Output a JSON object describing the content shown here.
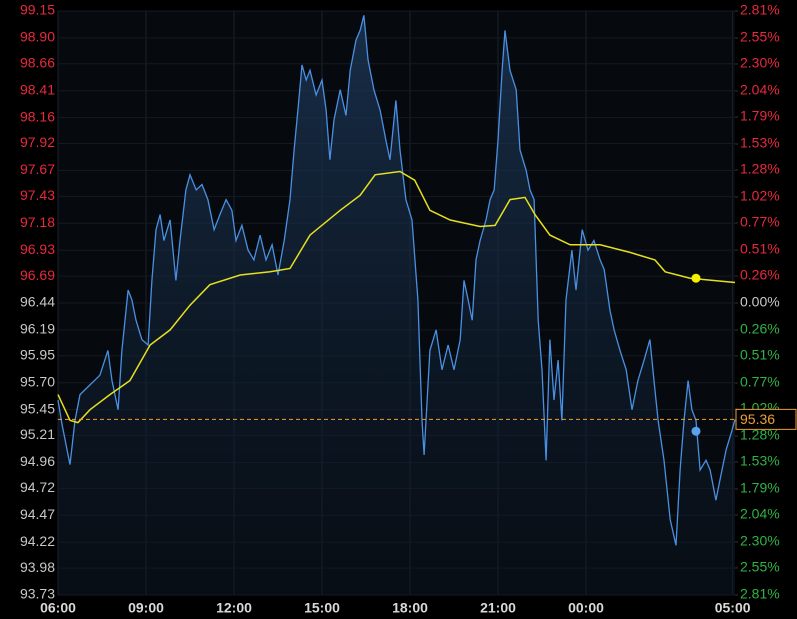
{
  "chart_data": {
    "type": "line",
    "xlim": [
      0,
      23.08
    ],
    "xticks": [
      {
        "value": 0,
        "label": "06:00"
      },
      {
        "value": 3,
        "label": "09:00"
      },
      {
        "value": 6,
        "label": "12:00"
      },
      {
        "value": 9,
        "label": "15:00"
      },
      {
        "value": 12,
        "label": "18:00"
      },
      {
        "value": 15,
        "label": "21:00"
      },
      {
        "value": 18,
        "label": "00:00"
      },
      {
        "value": 23,
        "label": "05:00"
      }
    ],
    "ylim": [
      93.73,
      99.15
    ],
    "yticks": [
      99.15,
      {
        "value": 98.9,
        "label": "98.90"
      },
      98.66,
      98.41,
      98.16,
      97.92,
      97.67,
      97.43,
      97.18,
      96.93,
      96.69,
      96.44,
      96.19,
      95.95,
      {
        "value": 95.7,
        "label": "95.70"
      },
      95.45,
      95.21,
      94.96,
      94.72,
      94.47,
      94.22,
      93.98,
      93.73
    ],
    "y2lim": [
      -2.81,
      2.81
    ],
    "y2ticks": [
      {
        "value": 2.81,
        "label": "2.81%"
      },
      {
        "value": 2.55,
        "label": "2.55%"
      },
      {
        "value": 2.3,
        "label": "2.30%"
      },
      {
        "value": 2.04,
        "label": "2.04%"
      },
      {
        "value": 1.79,
        "label": "1.79%"
      },
      {
        "value": 1.53,
        "label": "1.53%"
      },
      {
        "value": 1.28,
        "label": "1.28%"
      },
      {
        "value": 1.02,
        "label": "1.02%"
      },
      {
        "value": 0.77,
        "label": "0.77%"
      },
      {
        "value": 0.51,
        "label": "0.51%"
      },
      {
        "value": 0.26,
        "label": "0.26%"
      },
      {
        "value": 0,
        "label": "0.00%"
      },
      {
        "value": -0.26,
        "label": "0.26%"
      },
      {
        "value": -0.51,
        "label": "0.51%"
      },
      {
        "value": -0.77,
        "label": "0.77%"
      },
      {
        "value": -1.02,
        "label": "1.02%"
      },
      {
        "value": -1.28,
        "label": "1.28%"
      },
      {
        "value": -1.53,
        "label": "1.53%"
      },
      {
        "value": -1.79,
        "label": "1.79%"
      },
      {
        "value": -2.04,
        "label": "2.04%"
      },
      {
        "value": -2.3,
        "label": "2.30%"
      },
      {
        "value": -2.55,
        "label": "2.55%"
      },
      {
        "value": -2.81,
        "label": "2.81%"
      }
    ],
    "up_color": "#e8283c",
    "down_color": "#2fb344",
    "grid": true,
    "series": [
      {
        "color": "#4a90e2",
        "area": true,
        "x": [
          0,
          0.14,
          0.41,
          0.58,
          0.75,
          1.09,
          1.43,
          1.7,
          1.84,
          2.05,
          2.18,
          2.39,
          2.52,
          2.66,
          2.86,
          3.07,
          3.2,
          3.34,
          3.48,
          3.61,
          3.82,
          4.02,
          4.16,
          4.36,
          4.5,
          4.71,
          4.91,
          5.11,
          5.32,
          5.52,
          5.73,
          5.93,
          6.07,
          6.27,
          6.48,
          6.68,
          6.89,
          7.09,
          7.3,
          7.5,
          7.71,
          7.91,
          8.05,
          8.18,
          8.32,
          8.46,
          8.59,
          8.8,
          9.0,
          9.14,
          9.27,
          9.41,
          9.62,
          9.82,
          9.96,
          10.16,
          10.3,
          10.43,
          10.57,
          10.77,
          10.98,
          11.18,
          11.32,
          11.52,
          11.66,
          11.86,
          12.07,
          12.27,
          12.41,
          12.48,
          12.68,
          12.89,
          13.09,
          13.3,
          13.5,
          13.71,
          13.84,
          13.98,
          14.12,
          14.25,
          14.39,
          14.59,
          14.73,
          14.87,
          15.0,
          15.14,
          15.24,
          15.41,
          15.62,
          15.75,
          15.96,
          16.09,
          16.23,
          16.37,
          16.5,
          16.64,
          16.77,
          16.91,
          17.05,
          17.18,
          17.32,
          17.52,
          17.66,
          17.87,
          18.07,
          18.27,
          18.48,
          18.62,
          18.82,
          18.96,
          19.16,
          19.37,
          19.57,
          19.77,
          19.98,
          20.18,
          20.32,
          20.46,
          20.66,
          20.87,
          21.07,
          21.21,
          21.34,
          21.48,
          21.61,
          21.75,
          21.89,
          22.09,
          22.23,
          22.43,
          22.57,
          22.78,
          22.98,
          23.08
        ],
        "values": [
          95.54,
          95.31,
          94.94,
          95.35,
          95.59,
          95.68,
          95.77,
          96.0,
          95.72,
          95.45,
          96.0,
          96.56,
          96.47,
          96.28,
          96.1,
          96.05,
          96.65,
          97.12,
          97.26,
          97.02,
          97.21,
          96.65,
          97.02,
          97.49,
          97.63,
          97.49,
          97.54,
          97.4,
          97.12,
          97.26,
          97.4,
          97.3,
          97.02,
          97.16,
          96.93,
          96.84,
          97.07,
          96.84,
          96.98,
          96.7,
          97.02,
          97.4,
          97.86,
          98.23,
          98.65,
          98.51,
          98.6,
          98.37,
          98.51,
          98.23,
          97.77,
          98.14,
          98.42,
          98.18,
          98.6,
          98.88,
          98.97,
          99.11,
          98.7,
          98.42,
          98.23,
          97.95,
          97.77,
          98.32,
          97.86,
          97.4,
          97.21,
          96.47,
          95.35,
          95.03,
          96.0,
          96.19,
          95.82,
          96.05,
          95.82,
          96.1,
          96.65,
          96.47,
          96.28,
          96.84,
          97.02,
          97.21,
          97.4,
          97.49,
          97.95,
          98.6,
          98.97,
          98.6,
          98.42,
          97.86,
          97.67,
          97.49,
          97.4,
          96.28,
          95.82,
          94.98,
          96.1,
          95.54,
          95.91,
          95.35,
          96.47,
          96.93,
          96.56,
          97.12,
          96.93,
          97.02,
          96.84,
          96.75,
          96.37,
          96.19,
          96.0,
          95.82,
          95.45,
          95.72,
          95.91,
          96.1,
          95.72,
          95.35,
          94.98,
          94.43,
          94.19,
          94.89,
          95.35,
          95.72,
          95.45,
          95.35,
          94.89,
          94.98,
          94.89,
          94.61,
          94.8,
          95.08,
          95.26,
          95.36
        ]
      },
      {
        "color": "#e6e01e",
        "area": false,
        "x": [
          0,
          0.41,
          0.68,
          1.09,
          1.77,
          2.45,
          3.14,
          3.82,
          4.5,
          5.18,
          6.21,
          7.23,
          7.91,
          8.59,
          9.62,
          10.3,
          10.81,
          11.66,
          12.16,
          12.68,
          13.37,
          14.39,
          14.9,
          15.41,
          15.92,
          16.26,
          16.77,
          17.46,
          18.48,
          19.5,
          20.35,
          20.7,
          21.55,
          23.08
        ],
        "values": [
          95.59,
          95.35,
          95.33,
          95.45,
          95.59,
          95.72,
          96.05,
          96.19,
          96.42,
          96.61,
          96.7,
          96.73,
          96.76,
          97.07,
          97.3,
          97.44,
          97.63,
          97.66,
          97.58,
          97.3,
          97.21,
          97.15,
          97.16,
          97.4,
          97.42,
          97.26,
          97.07,
          96.98,
          96.98,
          96.91,
          96.84,
          96.73,
          96.67,
          96.63
        ]
      }
    ],
    "markers": [
      {
        "x": 21.75,
        "value": 96.67,
        "color": "#f5f000"
      },
      {
        "x": 21.75,
        "value": 95.25,
        "color": "#5aa0f0"
      }
    ],
    "last_value": 95.36,
    "last_color": "#f0a030"
  }
}
